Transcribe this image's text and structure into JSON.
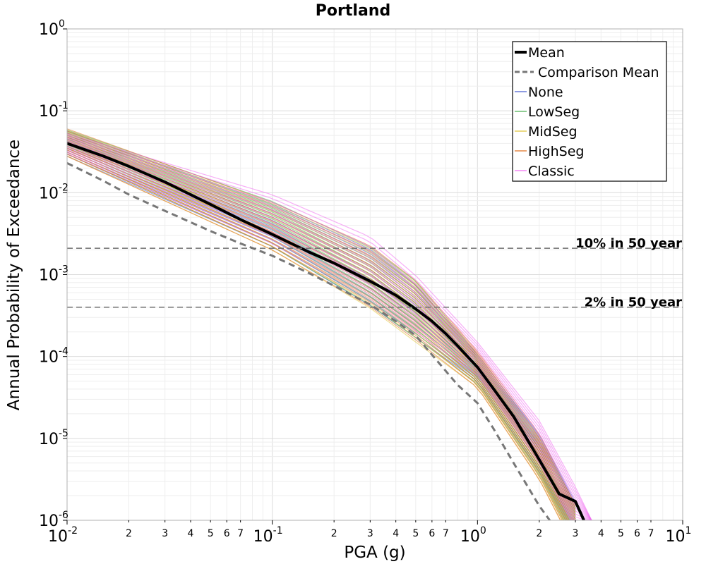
{
  "chart_data": {
    "type": "line",
    "title": "Portland",
    "xlabel": "PGA (g)",
    "ylabel": "Annual Probability of Exceedance",
    "x_scale": "log",
    "y_scale": "log",
    "xlim": [
      0.01,
      10
    ],
    "ylim": [
      1e-06,
      1
    ],
    "grid": true,
    "legend_position": "top-right",
    "x_major_ticks": [
      {
        "value": 0.01,
        "base": "10",
        "exp": "-2"
      },
      {
        "value": 0.1,
        "base": "10",
        "exp": "-1"
      },
      {
        "value": 1,
        "base": "10",
        "exp": "0"
      },
      {
        "value": 10,
        "base": "10",
        "exp": "1"
      }
    ],
    "x_minor_ticks": [
      {
        "value": 0.02,
        "label": "2"
      },
      {
        "value": 0.03,
        "label": "3"
      },
      {
        "value": 0.04,
        "label": "4"
      },
      {
        "value": 0.05,
        "label": "5"
      },
      {
        "value": 0.06,
        "label": "6"
      },
      {
        "value": 0.07,
        "label": "7"
      },
      {
        "value": 0.2,
        "label": "2"
      },
      {
        "value": 0.3,
        "label": "3"
      },
      {
        "value": 0.4,
        "label": "4"
      },
      {
        "value": 0.5,
        "label": "5"
      },
      {
        "value": 0.6,
        "label": "6"
      },
      {
        "value": 0.7,
        "label": "7"
      },
      {
        "value": 2,
        "label": "2"
      },
      {
        "value": 3,
        "label": "3"
      },
      {
        "value": 4,
        "label": "4"
      },
      {
        "value": 5,
        "label": "5"
      },
      {
        "value": 6,
        "label": "6"
      },
      {
        "value": 7,
        "label": "7"
      }
    ],
    "y_major_ticks": [
      {
        "value": 1,
        "base": "10",
        "exp": "0"
      },
      {
        "value": 0.1,
        "base": "10",
        "exp": "-1"
      },
      {
        "value": 0.01,
        "base": "10",
        "exp": "-2"
      },
      {
        "value": 0.001,
        "base": "10",
        "exp": "-3"
      },
      {
        "value": 0.0001,
        "base": "10",
        "exp": "-4"
      },
      {
        "value": 1e-05,
        "base": "10",
        "exp": "-5"
      },
      {
        "value": 1e-06,
        "base": "10",
        "exp": "-6"
      }
    ],
    "reference_lines": [
      {
        "y": 0.0021,
        "label": "10% in 50 year"
      },
      {
        "y": 0.0004,
        "label": "2% in 50 year"
      }
    ],
    "branch_bands": [
      {
        "name": "None",
        "color": "#4a5fd0",
        "x": [
          0.01,
          0.1,
          0.3,
          0.5,
          1.0,
          2.0,
          3.0
        ],
        "low": [
          0.028,
          0.0022,
          0.00042,
          0.00017,
          5e-05,
          4e-06,
          6e-07
        ],
        "high": [
          0.06,
          0.008,
          0.0023,
          0.00085,
          0.00011,
          1.2e-05,
          1.8e-06
        ]
      },
      {
        "name": "LowSeg",
        "color": "#4caf50",
        "x": [
          0.01,
          0.1,
          0.3,
          0.5,
          1.0,
          2.0,
          3.0
        ],
        "low": [
          0.029,
          0.0021,
          0.0004,
          0.00016,
          4.5e-05,
          3.5e-06,
          5e-07
        ],
        "high": [
          0.06,
          0.0082,
          0.0023,
          0.00088,
          0.00011,
          1.1e-05,
          1.6e-06
        ]
      },
      {
        "name": "MidSeg",
        "color": "#e0c43a",
        "x": [
          0.01,
          0.1,
          0.3,
          0.5,
          1.0,
          2.0,
          3.0
        ],
        "low": [
          0.028,
          0.002,
          0.00039,
          0.00015,
          4.2e-05,
          3.2e-06,
          4.5e-07
        ],
        "high": [
          0.061,
          0.0081,
          0.0024,
          0.0009,
          0.00012,
          1.1e-05,
          1.6e-06
        ]
      },
      {
        "name": "HighSeg",
        "color": "#e07020",
        "x": [
          0.01,
          0.1,
          0.3,
          0.5,
          1.0,
          2.0,
          3.0
        ],
        "low": [
          0.027,
          0.0019,
          0.00038,
          0.00015,
          4e-05,
          3e-06,
          4.2e-07
        ],
        "high": [
          0.062,
          0.008,
          0.0024,
          0.0009,
          0.00012,
          1.2e-05,
          1.6e-06
        ]
      },
      {
        "name": "Classic",
        "color": "#f06ef0",
        "x": [
          0.01,
          0.1,
          0.3,
          0.5,
          1.0,
          2.0,
          3.0,
          3.6
        ],
        "low": [
          0.03,
          0.0024,
          0.0005,
          0.0002,
          6e-05,
          5e-06,
          8e-07,
          1e-06
        ],
        "high": [
          0.055,
          0.0105,
          0.0033,
          0.0011,
          0.00016,
          1.8e-05,
          2.8e-06,
          1e-06
        ]
      }
    ],
    "series": [
      {
        "name": "Mean",
        "color": "#000000",
        "style": "solid",
        "x": [
          0.01,
          0.015,
          0.02,
          0.03,
          0.05,
          0.07,
          0.1,
          0.15,
          0.2,
          0.3,
          0.4,
          0.5,
          0.6,
          0.7,
          0.8,
          1.0,
          1.2,
          1.5,
          2.0,
          2.5,
          3.0,
          3.3
        ],
        "y": [
          0.04,
          0.028,
          0.021,
          0.0135,
          0.0072,
          0.0047,
          0.0031,
          0.0019,
          0.00138,
          0.00083,
          0.00056,
          0.00038,
          0.00027,
          0.00019,
          0.000135,
          7.4e-05,
          4e-05,
          1.85e-05,
          5.5e-06,
          2.1e-06,
          1.7e-06,
          1e-06
        ]
      },
      {
        "name": "Comparison Mean",
        "color": "#777777",
        "style": "dashed",
        "x": [
          0.01,
          0.015,
          0.02,
          0.03,
          0.05,
          0.07,
          0.1,
          0.15,
          0.2,
          0.3,
          0.4,
          0.5,
          0.6,
          0.8,
          1.0,
          1.2,
          1.5,
          2.0,
          2.25
        ],
        "y": [
          0.023,
          0.014,
          0.0095,
          0.006,
          0.0034,
          0.0024,
          0.0017,
          0.00105,
          0.00073,
          0.00043,
          0.00027,
          0.00018,
          0.000105,
          4.5e-05,
          2.7e-05,
          1.3e-05,
          5e-06,
          1.5e-06,
          1e-06
        ]
      }
    ],
    "legend": [
      {
        "label": "Mean",
        "color": "#000000",
        "style": "thick"
      },
      {
        "label": "Comparison Mean",
        "color": "#777777",
        "style": "dashed"
      },
      {
        "label": "None",
        "color": "#4a5fd0",
        "style": "thin"
      },
      {
        "label": "LowSeg",
        "color": "#4caf50",
        "style": "thin"
      },
      {
        "label": "MidSeg",
        "color": "#e0c43a",
        "style": "thin"
      },
      {
        "label": "HighSeg",
        "color": "#e07020",
        "style": "thin"
      },
      {
        "label": "Classic",
        "color": "#f06ef0",
        "style": "thin"
      }
    ]
  }
}
